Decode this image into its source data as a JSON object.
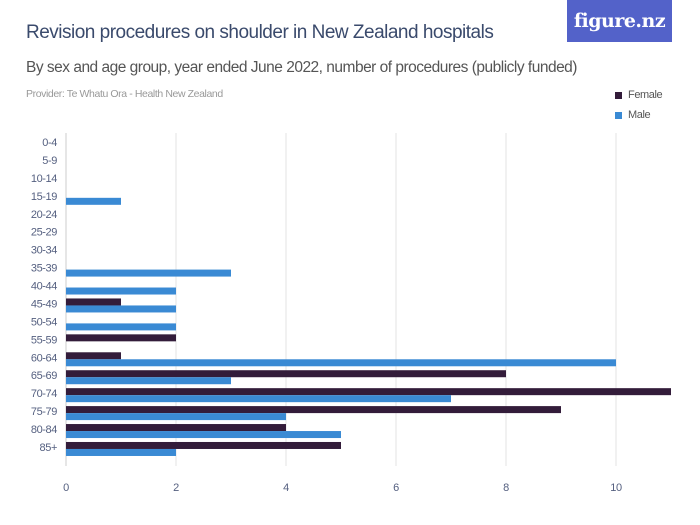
{
  "logo_text": "figure.nz",
  "chart_data": {
    "type": "bar",
    "orientation": "horizontal",
    "title": "Revision procedures on shoulder in New Zealand hospitals",
    "subtitle": "By sex and age group, year ended June 2022, number of procedures (publicly funded)",
    "provider": "Provider: Te Whatu Ora - Health New Zealand",
    "categories": [
      "0-4",
      "5-9",
      "10-14",
      "15-19",
      "20-24",
      "25-29",
      "30-34",
      "35-39",
      "40-44",
      "45-49",
      "50-54",
      "55-59",
      "60-64",
      "65-69",
      "70-74",
      "75-79",
      "80-84",
      "85+"
    ],
    "series": [
      {
        "name": "Female",
        "color": "#331c3a",
        "values": [
          0,
          0,
          0,
          0,
          0,
          0,
          0,
          0,
          0,
          1,
          0,
          2,
          1,
          8,
          11,
          9,
          4,
          5
        ]
      },
      {
        "name": "Male",
        "color": "#3a8ad4",
        "values": [
          0,
          0,
          0,
          1,
          0,
          0,
          0,
          3,
          2,
          2,
          2,
          0,
          10,
          3,
          7,
          4,
          5,
          2
        ]
      }
    ],
    "xlim": [
      0,
      11
    ],
    "xticks": [
      0,
      2,
      4,
      6,
      8,
      10
    ],
    "grid": true,
    "legend_position": "top-right"
  }
}
